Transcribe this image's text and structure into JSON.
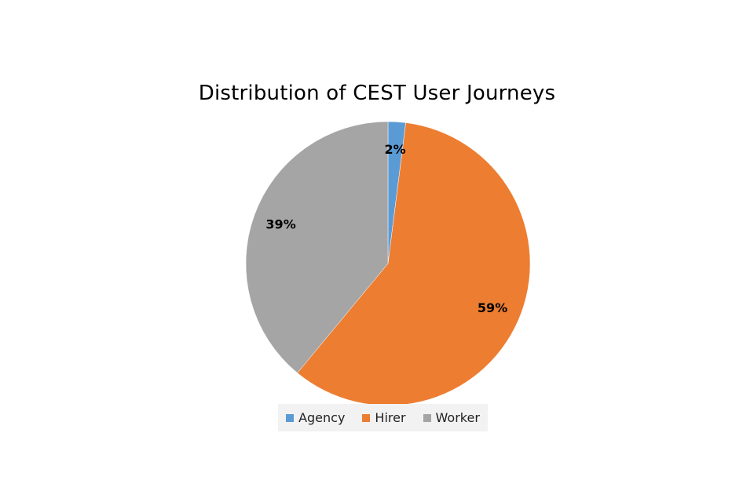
{
  "chart_data": {
    "type": "pie",
    "title": "Distribution of CEST User Journeys",
    "categories": [
      "Agency",
      "Hirer",
      "Worker"
    ],
    "values": [
      2,
      59,
      39
    ],
    "labels": [
      "2%",
      "59%",
      "39%"
    ],
    "colors": [
      "#5b9bd5",
      "#ed7d31",
      "#a5a5a5"
    ],
    "legend_position": "bottom",
    "start_angle_deg": 0,
    "direction": "clockwise"
  }
}
